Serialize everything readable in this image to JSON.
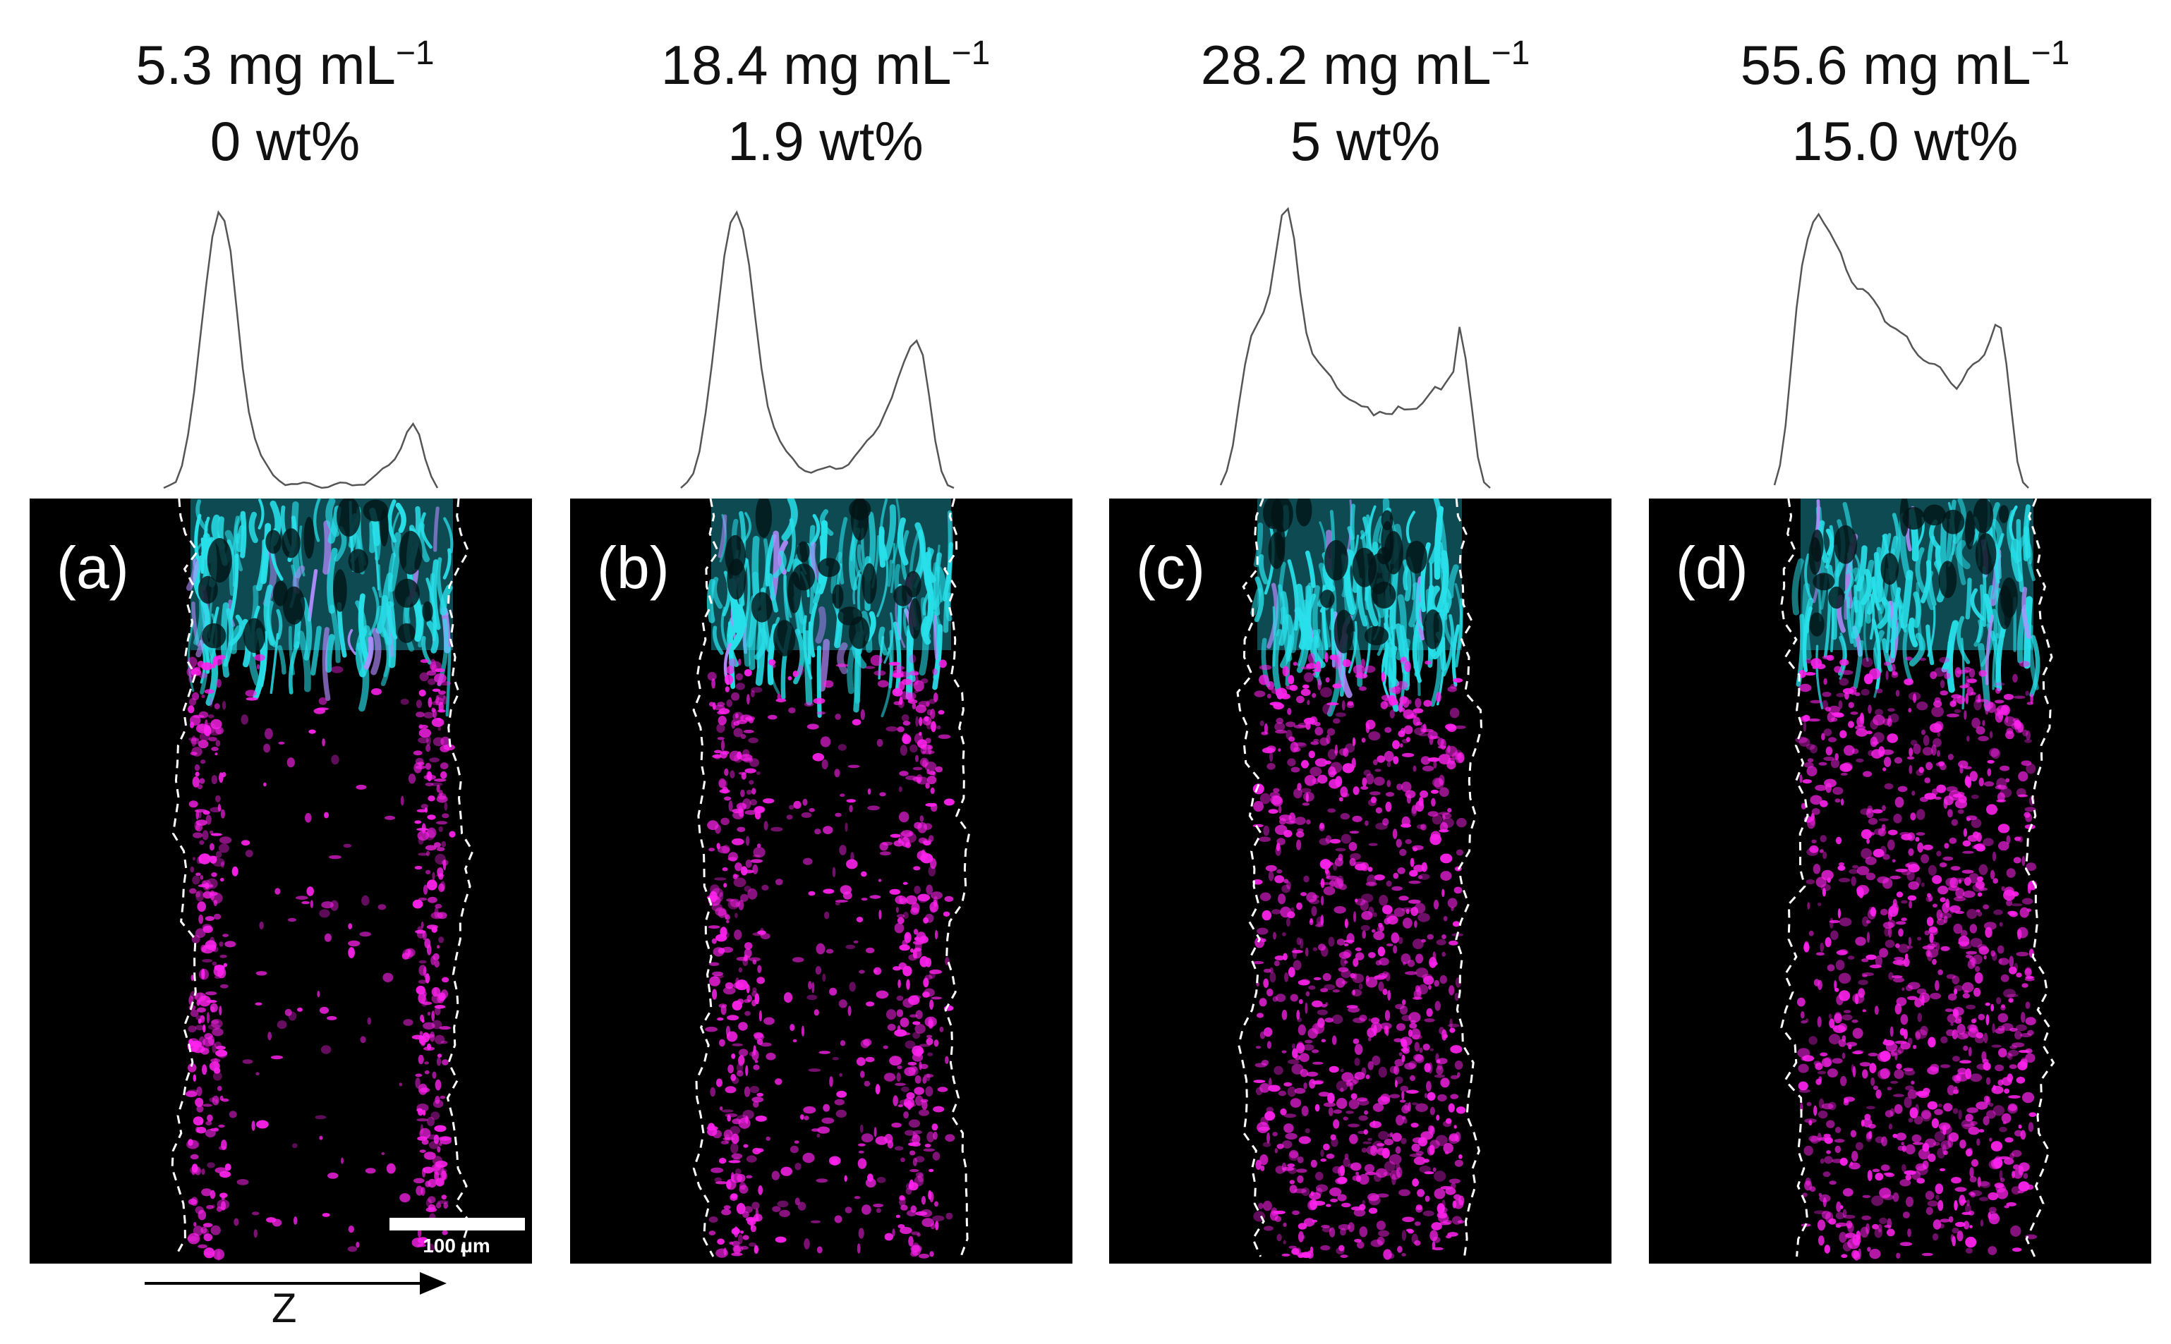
{
  "panels": [
    {
      "label": "(a)",
      "concentration": "5.3 mg mL",
      "concentration_sup": "−1",
      "weight": "0 wt%",
      "profile": [
        0.02,
        0.03,
        0.05,
        0.1,
        0.2,
        0.35,
        0.55,
        0.75,
        0.92,
        1.0,
        0.96,
        0.85,
        0.65,
        0.45,
        0.3,
        0.2,
        0.13,
        0.09,
        0.06,
        0.05,
        0.04,
        0.04,
        0.03,
        0.03,
        0.03,
        0.03,
        0.03,
        0.03,
        0.03,
        0.03,
        0.03,
        0.03,
        0.04,
        0.04,
        0.05,
        0.06,
        0.08,
        0.1,
        0.13,
        0.17,
        0.22,
        0.24,
        0.2,
        0.12,
        0.06,
        0.02
      ]
    },
    {
      "label": "(b)",
      "concentration": "18.4 mg mL",
      "concentration_sup": "−1",
      "weight": "1.9 wt%",
      "profile": [
        0.02,
        0.04,
        0.08,
        0.15,
        0.28,
        0.45,
        0.65,
        0.85,
        0.97,
        1.0,
        0.93,
        0.8,
        0.62,
        0.45,
        0.32,
        0.24,
        0.18,
        0.14,
        0.12,
        0.1,
        0.09,
        0.08,
        0.08,
        0.08,
        0.09,
        0.09,
        0.1,
        0.11,
        0.13,
        0.15,
        0.18,
        0.21,
        0.25,
        0.3,
        0.34,
        0.4,
        0.46,
        0.52,
        0.55,
        0.5,
        0.35,
        0.18,
        0.07,
        0.03,
        0.02
      ]
    },
    {
      "label": "(c)",
      "concentration": "28.2 mg mL",
      "concentration_sup": "−1",
      "weight": "5 wt%",
      "profile": [
        0.03,
        0.08,
        0.18,
        0.32,
        0.45,
        0.55,
        0.6,
        0.65,
        0.72,
        0.85,
        0.98,
        1.0,
        0.9,
        0.72,
        0.58,
        0.5,
        0.46,
        0.43,
        0.41,
        0.38,
        0.36,
        0.34,
        0.32,
        0.3,
        0.3,
        0.28,
        0.3,
        0.29,
        0.28,
        0.3,
        0.29,
        0.3,
        0.31,
        0.33,
        0.35,
        0.37,
        0.36,
        0.4,
        0.44,
        0.6,
        0.48,
        0.3,
        0.12,
        0.04,
        0.02
      ]
    },
    {
      "label": "(d)",
      "concentration": "55.6 mg mL",
      "concentration_sup": "−1",
      "weight": "15.0 wt%",
      "profile": [
        0.03,
        0.1,
        0.25,
        0.45,
        0.65,
        0.8,
        0.9,
        0.97,
        1.0,
        0.96,
        0.92,
        0.88,
        0.85,
        0.8,
        0.76,
        0.73,
        0.72,
        0.7,
        0.68,
        0.66,
        0.62,
        0.6,
        0.58,
        0.56,
        0.55,
        0.52,
        0.5,
        0.48,
        0.46,
        0.45,
        0.44,
        0.42,
        0.4,
        0.38,
        0.4,
        0.43,
        0.45,
        0.47,
        0.5,
        0.55,
        0.6,
        0.58,
        0.45,
        0.28,
        0.12,
        0.04,
        0.02
      ]
    }
  ],
  "scale_bar": "100 µm",
  "axis_label": "Z",
  "colors": {
    "cyan": "#28e0ea",
    "magenta": "#ff22ee",
    "profile_line": "#555555",
    "outline": "#ffffff"
  }
}
